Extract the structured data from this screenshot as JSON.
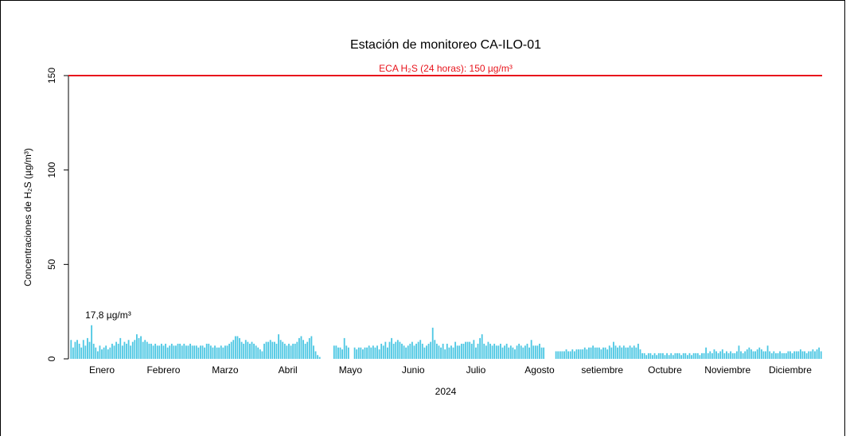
{
  "chart_data": {
    "type": "bar",
    "title": "Estación de monitoreo  CA-ILO-01",
    "x_label": "2024",
    "y_label": "Concentraciones de H₂S (µg/m³)",
    "color": "#4cc7e3",
    "ylim": [
      0,
      150
    ],
    "yticks": [
      0,
      50,
      100,
      150
    ],
    "reference_line": {
      "value": 150,
      "label": "ECA H₂S (24 horas): 150 µg/m³",
      "color": "#e8141c"
    },
    "annotations": [
      {
        "text": "17,8 µg/m³"
      }
    ],
    "categories": [
      "Enero",
      "Febrero",
      "Marzo",
      "Abril",
      "Mayo",
      "Junio",
      "Julio",
      "Agosto",
      "setiembre",
      "Octubre",
      "Noviembre",
      "Diciembre"
    ],
    "values": [
      [
        10,
        6,
        9,
        10,
        8,
        6,
        10,
        7,
        11,
        9,
        17.8,
        8,
        6,
        4,
        7,
        5,
        6,
        7,
        5,
        6,
        8,
        7,
        9,
        8,
        11,
        7,
        9,
        8,
        10,
        7,
        9
      ],
      [
        10,
        13,
        11,
        12,
        9,
        10,
        9,
        8,
        8,
        7,
        8,
        7,
        7,
        8,
        7,
        8,
        6,
        7,
        8,
        7,
        7,
        8,
        8,
        7,
        8,
        7,
        7,
        8,
        7
      ],
      [
        7,
        7,
        6,
        7,
        7,
        6,
        8,
        8,
        7,
        6,
        7,
        6,
        6,
        7,
        6,
        7,
        7,
        8,
        9,
        10,
        12,
        12,
        11,
        9,
        8,
        10,
        9,
        8,
        9,
        8,
        7
      ],
      [
        6,
        5,
        4,
        8,
        9,
        9,
        10,
        9,
        9,
        8,
        13,
        10,
        9,
        8,
        7,
        8,
        7,
        8,
        8,
        9,
        11,
        12,
        10,
        8,
        9,
        11,
        12,
        7,
        4,
        2
      ],
      [
        1,
        null,
        null,
        null,
        null,
        null,
        null,
        7,
        7,
        6,
        6,
        5,
        11,
        7,
        6,
        null,
        null,
        6,
        5,
        6,
        6,
        5,
        6,
        6,
        7,
        6,
        7,
        6,
        7,
        5,
        8
      ],
      [
        7,
        9,
        6,
        9,
        11,
        8,
        9,
        10,
        9,
        8,
        7,
        6,
        7,
        8,
        9,
        7,
        8,
        9,
        10,
        8,
        6,
        7,
        8,
        9,
        16.5,
        10,
        8,
        7,
        6,
        8
      ],
      [
        5,
        8,
        6,
        7,
        6,
        9,
        7,
        7,
        8,
        8,
        9,
        9,
        9,
        8,
        10,
        6,
        8,
        11,
        13,
        8,
        7,
        9,
        8,
        7,
        8,
        7,
        7,
        8,
        6,
        7,
        8
      ],
      [
        6,
        7,
        6,
        5,
        7,
        8,
        7,
        6,
        7,
        8,
        6,
        10,
        7,
        7,
        7,
        8,
        6,
        6,
        null,
        null,
        null,
        null,
        null,
        4,
        4,
        4,
        4,
        4,
        5,
        4,
        4
      ],
      [
        5,
        4,
        5,
        5,
        5,
        5,
        6,
        5,
        6,
        6,
        7,
        6,
        6,
        6,
        5,
        6,
        6,
        5,
        7,
        6,
        9,
        7,
        6,
        7,
        6,
        7,
        6,
        6,
        7,
        6
      ],
      [
        7,
        6,
        8,
        5,
        3,
        3,
        2,
        3,
        3,
        2,
        3,
        2,
        3,
        3,
        3,
        2,
        3,
        2,
        3,
        2,
        3,
        3,
        3,
        2,
        3,
        3,
        2,
        3,
        2,
        3,
        3
      ],
      [
        3,
        2,
        3,
        3,
        6,
        3,
        4,
        3,
        5,
        4,
        3,
        4,
        5,
        3,
        4,
        3,
        4,
        3,
        3,
        4,
        7,
        4,
        3,
        4,
        5,
        6,
        5,
        4,
        4,
        5
      ],
      [
        6,
        5,
        4,
        4,
        7,
        4,
        3,
        4,
        3,
        3,
        4,
        3,
        3,
        3,
        4,
        4,
        3,
        4,
        4,
        4,
        5,
        4,
        4,
        3,
        4,
        4,
        5,
        4,
        5,
        6,
        4
      ]
    ]
  }
}
